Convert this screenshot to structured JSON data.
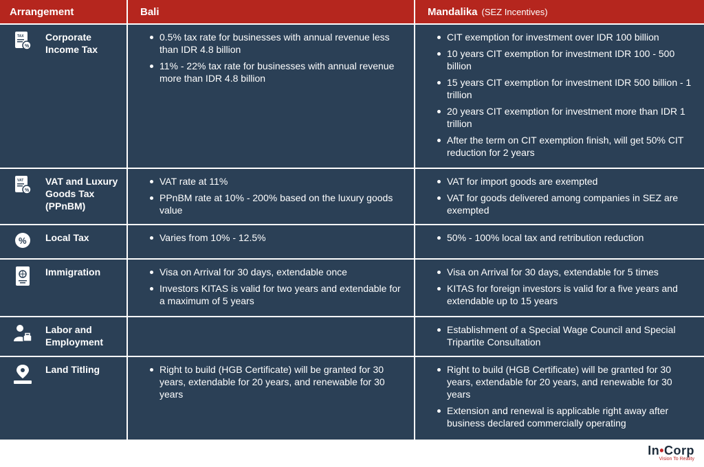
{
  "header": {
    "col1": "Arrangement",
    "col2": "Bali",
    "col3": "Mandalika",
    "col3_sub": "(SEZ Incentives)"
  },
  "rows": [
    {
      "label": "Corporate Income Tax",
      "icon": "tax-document-icon",
      "bali": [
        "0.5% tax rate for businesses with annual revenue less than IDR 4.8 billion",
        "11% - 22% tax rate for businesses with annual revenue more than IDR 4.8 billion"
      ],
      "mandalika": [
        "CIT exemption for investment over IDR 100 billion",
        "10 years CIT exemption for investment IDR 100 - 500 billion",
        "15 years CIT exemption for investment IDR 500 billion - 1 trillion",
        "20 years CIT exemption for investment more than IDR 1 trillion",
        "After the term on CIT exemption finish, will get 50% CIT reduction for 2 years"
      ]
    },
    {
      "label": "VAT and Luxury Goods Tax (PPnBM)",
      "icon": "vat-document-icon",
      "bali": [
        "VAT rate at 11%",
        "PPnBM rate at 10% - 200% based on the luxury goods value"
      ],
      "mandalika": [
        "VAT for import goods are exempted",
        "VAT for goods delivered among companies in SEZ are exempted"
      ]
    },
    {
      "label": "Local Tax",
      "icon": "percent-badge-icon",
      "bali": [
        "Varies from 10% - 12.5%"
      ],
      "mandalika": [
        "50% - 100% local tax and retribution reduction"
      ]
    },
    {
      "label": "Immigration",
      "icon": "passport-icon",
      "bali": [
        "Visa on Arrival for 30 days, extendable once",
        "Investors KITAS is valid for two years and extendable for a maximum of 5 years"
      ],
      "mandalika": [
        "Visa on Arrival for 30 days, extendable for 5 times",
        "KITAS for foreign investors is valid for a five years and extendable up to 15 years"
      ]
    },
    {
      "label": "Labor and Employment",
      "icon": "worker-briefcase-icon",
      "bali": [],
      "mandalika": [
        "Establishment of a Special Wage Council and Special Tripartite Consultation"
      ]
    },
    {
      "label": "Land Titling",
      "icon": "land-pin-icon",
      "bali": [
        "Right to build (HGB Certificate) will be granted for 30 years, extendable for 20 years, and renewable for 30 years"
      ],
      "mandalika": [
        "Right to build (HGB Certificate) will be granted for 30 years, extendable for 20 years, and renewable for 30 years",
        "Extension and renewal is applicable right away after business declared commercially operating"
      ]
    }
  ],
  "logo": {
    "brand_left": "In",
    "brand_dot": "•",
    "brand_right": "Corp",
    "tagline": "Vision To Reality"
  },
  "colors": {
    "header_bg": "#b5261e",
    "row_bg": "#2b4056",
    "brand_red": "#c0282a"
  }
}
